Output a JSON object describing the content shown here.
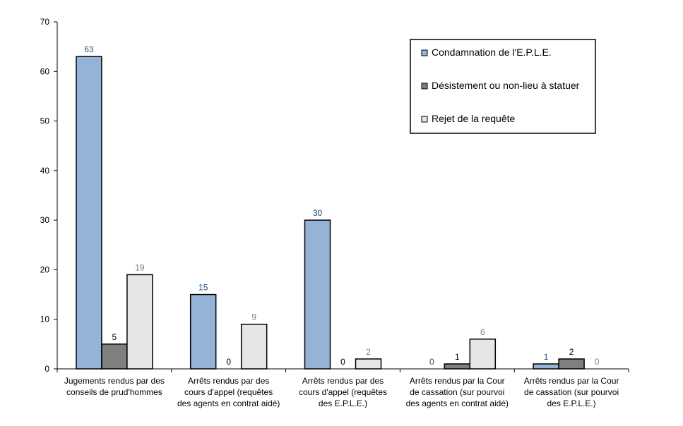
{
  "chart_data": {
    "type": "bar",
    "title": "",
    "xlabel": "",
    "ylabel": "",
    "ylim": [
      0,
      70
    ],
    "yticks": [
      0,
      10,
      20,
      30,
      40,
      50,
      60,
      70
    ],
    "grid": false,
    "legend_position": "top-right",
    "categories": [
      [
        "Jugements rendus par des",
        "conseils de prud'hommes"
      ],
      [
        "Arrêts rendus par des",
        "cours d'appel (requêtes",
        "des agents en contrat aidé)"
      ],
      [
        "Arrêts rendus par des",
        "cours d'appel (requêtes",
        "des E.P.L.E.)"
      ],
      [
        "Arrêts rendus par la Cour",
        "de cassation (sur pourvoi",
        "des agents en contrat aidé)"
      ],
      [
        "Arrêts rendus par la Cour",
        "de cassation (sur pourvoi",
        "des E.P.L.E.)"
      ]
    ],
    "series": [
      {
        "name": "Condamnation de l'E.P.L.E.",
        "values": [
          63,
          15,
          30,
          0,
          1
        ],
        "color": "#95b3d7",
        "label_color": "#1f4e79"
      },
      {
        "name": "Désistement ou non-lieu à statuer",
        "values": [
          5,
          0,
          0,
          1,
          2
        ],
        "color": "#7f7f7f",
        "label_color": "#000000"
      },
      {
        "name": "Rejet de la requête",
        "values": [
          19,
          9,
          2,
          6,
          0
        ],
        "color": "#e6e6e6",
        "label_color": "#808080"
      }
    ]
  }
}
